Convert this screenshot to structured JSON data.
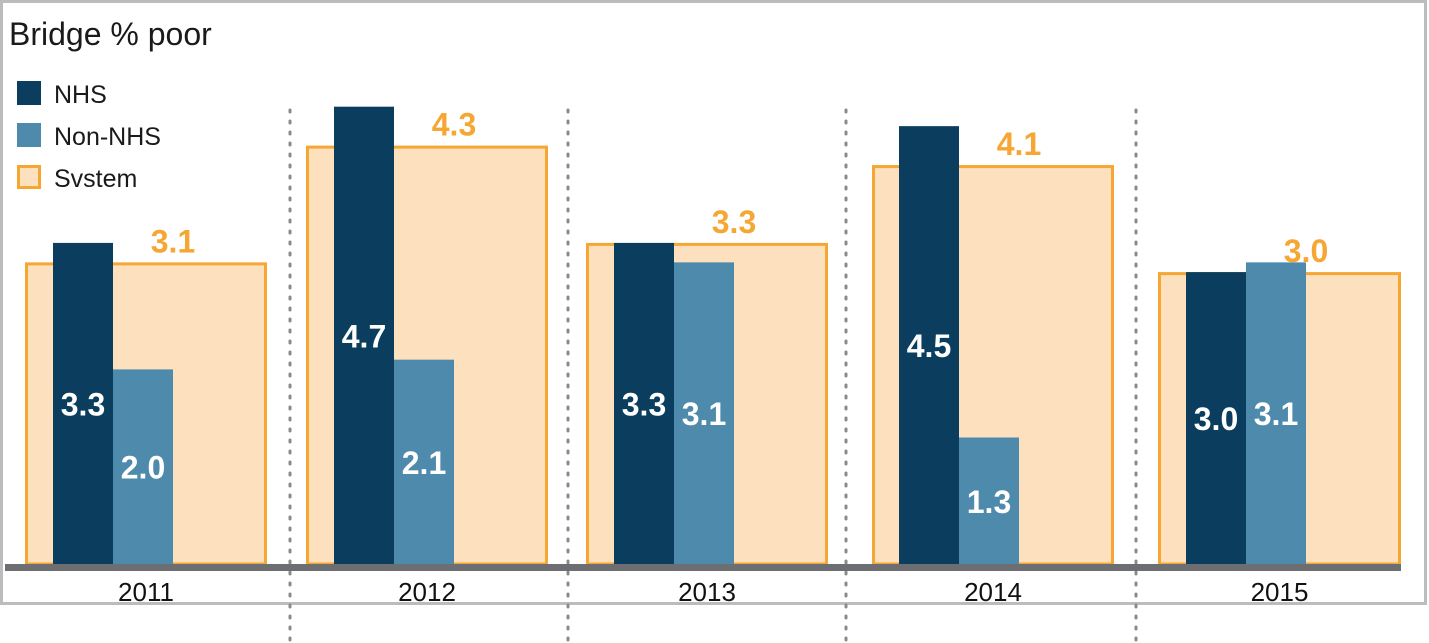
{
  "chart_data": {
    "type": "bar",
    "title": "Bridge % poor",
    "xlabel": "",
    "ylabel": "",
    "categories": [
      "2011",
      "2012",
      "2013",
      "2014",
      "2015"
    ],
    "series": [
      {
        "name": "NHS",
        "values": [
          3.3,
          4.7,
          3.3,
          4.5,
          3.0
        ]
      },
      {
        "name": "Non-NHS",
        "values": [
          2.0,
          2.1,
          3.1,
          1.3,
          3.1
        ]
      },
      {
        "name": "System",
        "values": [
          3.1,
          4.3,
          3.3,
          4.1,
          3.0
        ]
      }
    ],
    "legend_labels": [
      "NHS",
      "Non-NHS",
      "Svstem"
    ],
    "value_labels": {
      "NHS": [
        "3.3",
        "4.7",
        "3.3",
        "4.5",
        "3.0"
      ],
      "Non-NHS": [
        "2.0",
        "2.1",
        "3.1",
        "1.3",
        "3.1"
      ],
      "System": [
        "3.1",
        "4.3",
        "3.3",
        "4.1",
        "3.0"
      ]
    },
    "ylim": [
      0,
      4.7
    ],
    "grid": false,
    "legend_position": "top-left",
    "colors": {
      "NHS": "#0a3d5e",
      "Non-NHS": "#4e8aab",
      "System_fill": "#fde0bd",
      "System_stroke": "#f5a633",
      "axis": "#6d6e71",
      "separator": "#8a8a8a",
      "frame": "#bcbcbc"
    }
  }
}
